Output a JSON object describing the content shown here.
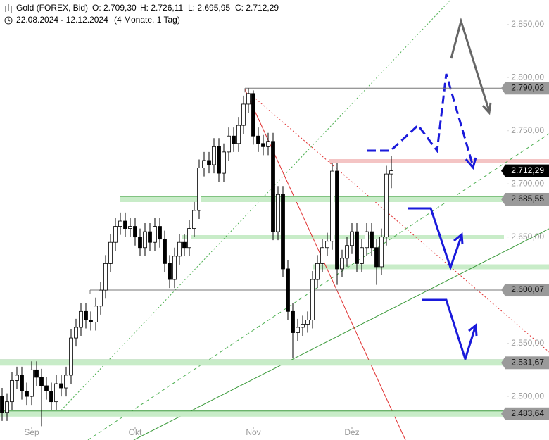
{
  "chart_data": {
    "type": "candlestick",
    "title": "Gold (FOREX, Bid)",
    "subtitle": "22.08.2024 - 12.12.2024",
    "span": "(4 Monate, 1 Tag)",
    "ohlc_labels": [
      "O: 2.709,30",
      "H: 2.726,11",
      "L: 2.695,95",
      "C: 2.712,29"
    ],
    "categories": [
      null,
      null,
      null,
      null,
      null,
      null,
      "Sep",
      null,
      null,
      null,
      null,
      null,
      null,
      null,
      null,
      null,
      null,
      null,
      null,
      null,
      null,
      null,
      null,
      null,
      null,
      null,
      null,
      "Okt",
      null,
      null,
      null,
      null,
      null,
      null,
      null,
      null,
      null,
      null,
      null,
      null,
      null,
      null,
      null,
      null,
      null,
      null,
      null,
      null,
      null,
      null,
      null,
      "Nov",
      null,
      null,
      null,
      null,
      null,
      null,
      null,
      null,
      null,
      null,
      null,
      null,
      null,
      null,
      null,
      null,
      null,
      null,
      null,
      "Dez",
      null,
      null,
      null,
      null,
      null,
      null,
      null,
      null
    ],
    "open": [
      2500,
      2485,
      2495,
      2515,
      2520,
      2505,
      2500,
      2525,
      2518,
      2510,
      2505,
      2495,
      2512,
      2508,
      2520,
      2555,
      2565,
      2580,
      2572,
      2570,
      2585,
      2600,
      2625,
      2645,
      2660,
      2665,
      2658,
      2660,
      2650,
      2640,
      2655,
      2645,
      2660,
      2648,
      2625,
      2610,
      2632,
      2645,
      2640,
      2658,
      2675,
      2715,
      2722,
      2718,
      2735,
      2710,
      2730,
      2745,
      2738,
      2755,
      2775,
      2785,
      2745,
      2738,
      2735,
      2740,
      2655,
      2690,
      2620,
      2580,
      2560,
      2565,
      2568,
      2572,
      2610,
      2625,
      2640,
      2646,
      2712,
      2620,
      2630,
      2642,
      2655,
      2625,
      2640,
      2655,
      2640,
      2622,
      2650,
      2709.3
    ],
    "high": [
      2508,
      2503,
      2523,
      2528,
      2528,
      2513,
      2533,
      2533,
      2526,
      2518,
      2513,
      2520,
      2520,
      2528,
      2563,
      2573,
      2588,
      2588,
      2580,
      2593,
      2608,
      2633,
      2653,
      2668,
      2673,
      2673,
      2668,
      2668,
      2658,
      2663,
      2663,
      2668,
      2668,
      2656,
      2633,
      2640,
      2653,
      2653,
      2666,
      2683,
      2723,
      2730,
      2730,
      2743,
      2743,
      2738,
      2753,
      2753,
      2763,
      2783,
      2790.02,
      2788,
      2753,
      2746,
      2748,
      2748,
      2698,
      2698,
      2628,
      2588,
      2573,
      2576,
      2580,
      2618,
      2633,
      2648,
      2654,
      2720,
      2720,
      2638,
      2650,
      2663,
      2663,
      2648,
      2663,
      2663,
      2648,
      2658,
      2717,
      2726.11
    ],
    "low": [
      2477,
      2477,
      2487,
      2507,
      2497,
      2492,
      2492,
      2510,
      2472,
      2497,
      2487,
      2487,
      2500,
      2500,
      2512,
      2547,
      2557,
      2564,
      2562,
      2562,
      2577,
      2592,
      2617,
      2637,
      2652,
      2650,
      2650,
      2642,
      2632,
      2632,
      2637,
      2637,
      2640,
      2617,
      2602,
      2602,
      2624,
      2632,
      2632,
      2650,
      2667,
      2707,
      2710,
      2710,
      2702,
      2702,
      2722,
      2730,
      2730,
      2747,
      2767,
      2737,
      2730,
      2727,
      2727,
      2647,
      2647,
      2612,
      2572,
      2536,
      2552,
      2557,
      2560,
      2564,
      2602,
      2617,
      2632,
      2638,
      2605,
      2612,
      2622,
      2634,
      2617,
      2617,
      2632,
      2632,
      2605,
      2614,
      2642,
      2695.95
    ],
    "close": [
      2485,
      2495,
      2515,
      2520,
      2505,
      2500,
      2525,
      2518,
      2510,
      2505,
      2495,
      2512,
      2508,
      2520,
      2555,
      2565,
      2580,
      2572,
      2570,
      2585,
      2600,
      2625,
      2645,
      2660,
      2665,
      2658,
      2660,
      2650,
      2640,
      2655,
      2645,
      2660,
      2648,
      2625,
      2610,
      2632,
      2645,
      2640,
      2658,
      2675,
      2715,
      2722,
      2718,
      2735,
      2710,
      2730,
      2745,
      2738,
      2755,
      2775,
      2785,
      2745,
      2738,
      2735,
      2740,
      2655,
      2690,
      2620,
      2580,
      2560,
      2565,
      2568,
      2572,
      2610,
      2625,
      2640,
      2646,
      2712,
      2620,
      2630,
      2642,
      2655,
      2625,
      2640,
      2655,
      2640,
      2622,
      2650,
      2709.3,
      2712.29
    ],
    "up_color": "#ffffff",
    "down_color": "#000000",
    "ylim": [
      2459,
      2873
    ],
    "yticks": [
      {
        "value": 2850,
        "label": "2.850,00"
      },
      {
        "value": 2800,
        "label": "2.800,00"
      },
      {
        "value": 2750,
        "label": "2.750,00"
      },
      {
        "value": 2700,
        "label": "2.700,00"
      },
      {
        "value": 2650,
        "label": "2.650,00"
      },
      {
        "value": 2600,
        "label": "2.600,00"
      },
      {
        "value": 2550,
        "label": "2.550,00"
      },
      {
        "value": 2500,
        "label": "2.500,00"
      }
    ],
    "levels": [
      {
        "value": 2790.02,
        "label": "2.790,02",
        "style": "line"
      },
      {
        "value": 2685.55,
        "label": "2.685,55",
        "style": "band"
      },
      {
        "value": 2600.07,
        "label": "2.600,07",
        "style": "line"
      },
      {
        "value": 2531.67,
        "label": "2.531,67",
        "style": "band"
      },
      {
        "value": 2483.64,
        "label": "2.483,64",
        "style": "band"
      }
    ],
    "last_price": {
      "value": 2712.29,
      "label": "2.712,29"
    }
  }
}
